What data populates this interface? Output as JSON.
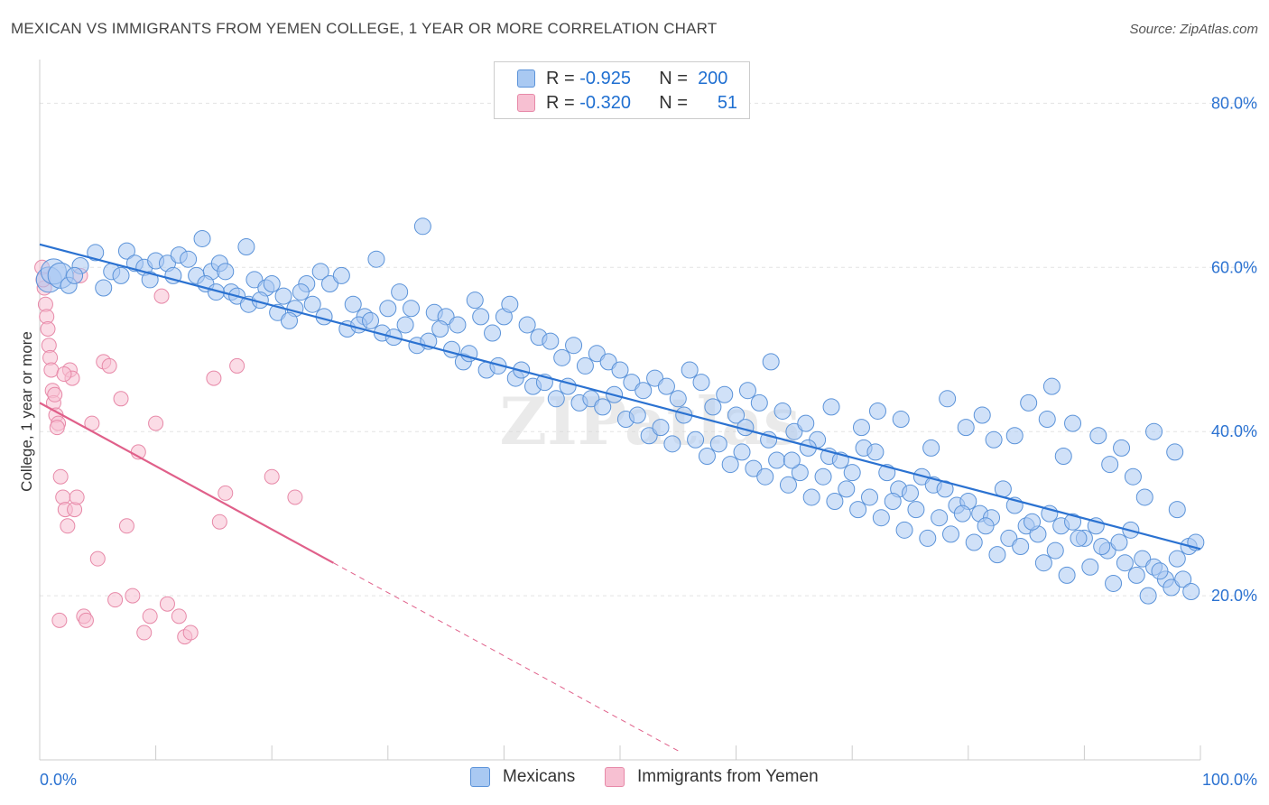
{
  "title": "MEXICAN VS IMMIGRANTS FROM YEMEN COLLEGE, 1 YEAR OR MORE CORRELATION CHART",
  "source": "Source: ZipAtlas.com",
  "legend": {
    "rows": [
      {
        "r_label": "R =",
        "r_value": "-0.925",
        "n_label": "N =",
        "n_value": "200"
      },
      {
        "r_label": "R =",
        "r_value": "-0.320",
        "n_label": "N =",
        "n_value": "51"
      }
    ]
  },
  "colors": {
    "mexicans_fill": "#a9c9f2",
    "mexicans_stroke": "#5b93d9",
    "mexicans_line": "#2b72d1",
    "yemen_fill": "#f7c0d2",
    "yemen_stroke": "#e789a8",
    "yemen_line": "#e0608a",
    "tick_label": "#2b72d1",
    "grid": "#e3e3e3"
  },
  "chart_data": {
    "type": "scatter",
    "title": "MEXICAN VS IMMIGRANTS FROM YEMEN COLLEGE, 1 YEAR OR MORE CORRELATION CHART",
    "xlabel": "",
    "ylabel": "College, 1 year or more",
    "xlim": [
      0,
      100
    ],
    "ylim": [
      0,
      84
    ],
    "x_tick_labels": [
      "0.0%",
      "100.0%"
    ],
    "y_ticks": [
      20,
      40,
      60,
      80
    ],
    "y_tick_labels": [
      "20.0%",
      "40.0%",
      "60.0%",
      "80.0%"
    ],
    "grid": true,
    "legend_position": "top-center",
    "watermark": "ZIPatlas",
    "series": [
      {
        "name": "Mexicans",
        "trend": {
          "x0": 0,
          "y0": 62.8,
          "x1": 100,
          "y1": 25.7
        },
        "points": [
          [
            0.8,
            58.5
          ],
          [
            1.2,
            59.5
          ],
          [
            1.8,
            59.0
          ],
          [
            2.5,
            57.8
          ],
          [
            3.5,
            60.2
          ],
          [
            4.8,
            61.8
          ],
          [
            6.2,
            59.5
          ],
          [
            7.5,
            62.0
          ],
          [
            8.2,
            60.5
          ],
          [
            9.0,
            60.0
          ],
          [
            10.0,
            60.8
          ],
          [
            11.0,
            60.5
          ],
          [
            12.0,
            61.5
          ],
          [
            12.8,
            61.0
          ],
          [
            13.5,
            59.0
          ],
          [
            14.0,
            63.5
          ],
          [
            14.8,
            59.5
          ],
          [
            15.5,
            60.5
          ],
          [
            16.5,
            57.0
          ],
          [
            17.0,
            56.5
          ],
          [
            17.8,
            62.5
          ],
          [
            18.5,
            58.5
          ],
          [
            19.5,
            57.5
          ],
          [
            20.0,
            58.0
          ],
          [
            21.0,
            56.5
          ],
          [
            22.0,
            55.0
          ],
          [
            23.0,
            58.0
          ],
          [
            23.5,
            55.5
          ],
          [
            24.2,
            59.5
          ],
          [
            25.0,
            58.0
          ],
          [
            26.0,
            59.0
          ],
          [
            27.0,
            55.5
          ],
          [
            28.0,
            54.0
          ],
          [
            29.0,
            61.0
          ],
          [
            30.0,
            55.0
          ],
          [
            31.0,
            57.0
          ],
          [
            32.0,
            55.0
          ],
          [
            33.0,
            65.0
          ],
          [
            34.0,
            54.5
          ],
          [
            35.0,
            54.0
          ],
          [
            36.0,
            53.0
          ],
          [
            37.5,
            56.0
          ],
          [
            38.0,
            54.0
          ],
          [
            39.0,
            52.0
          ],
          [
            40.0,
            54.0
          ],
          [
            40.5,
            55.5
          ],
          [
            42.0,
            53.0
          ],
          [
            43.0,
            51.5
          ],
          [
            44.0,
            51.0
          ],
          [
            45.0,
            49.0
          ],
          [
            46.0,
            50.5
          ],
          [
            47.0,
            48.0
          ],
          [
            48.0,
            49.5
          ],
          [
            49.0,
            48.5
          ],
          [
            50.0,
            47.5
          ],
          [
            51.0,
            46.0
          ],
          [
            52.0,
            45.0
          ],
          [
            53.0,
            46.5
          ],
          [
            54.0,
            45.5
          ],
          [
            55.0,
            44.0
          ],
          [
            56.0,
            47.5
          ],
          [
            57.0,
            46.0
          ],
          [
            58.0,
            43.0
          ],
          [
            59.0,
            44.5
          ],
          [
            60.0,
            42.0
          ],
          [
            61.0,
            45.0
          ],
          [
            62.0,
            43.5
          ],
          [
            63.0,
            48.5
          ],
          [
            64.0,
            42.5
          ],
          [
            65.0,
            40.0
          ],
          [
            66.0,
            41.0
          ],
          [
            67.0,
            39.0
          ],
          [
            68.0,
            37.0
          ],
          [
            69.0,
            36.5
          ],
          [
            70.0,
            35.0
          ],
          [
            71.0,
            38.0
          ],
          [
            72.0,
            37.5
          ],
          [
            73.0,
            35.0
          ],
          [
            74.0,
            33.0
          ],
          [
            75.0,
            32.5
          ],
          [
            76.0,
            34.5
          ],
          [
            77.0,
            33.5
          ],
          [
            78.0,
            33.0
          ],
          [
            79.0,
            31.0
          ],
          [
            80.0,
            31.5
          ],
          [
            81.0,
            30.0
          ],
          [
            82.0,
            29.5
          ],
          [
            83.0,
            33.0
          ],
          [
            84.0,
            31.0
          ],
          [
            85.0,
            28.5
          ],
          [
            86.0,
            27.5
          ],
          [
            87.0,
            30.0
          ],
          [
            88.0,
            28.5
          ],
          [
            89.0,
            29.0
          ],
          [
            90.0,
            27.0
          ],
          [
            91.0,
            28.5
          ],
          [
            92.0,
            25.5
          ],
          [
            93.0,
            26.5
          ],
          [
            94.0,
            28.0
          ],
          [
            95.0,
            24.5
          ],
          [
            96.0,
            23.5
          ],
          [
            97.0,
            22.0
          ],
          [
            98.0,
            24.5
          ],
          [
            99.0,
            26.0
          ],
          [
            99.6,
            26.5
          ],
          [
            3.0,
            59.0
          ],
          [
            5.5,
            57.5
          ],
          [
            7.0,
            59.0
          ],
          [
            9.5,
            58.5
          ],
          [
            11.5,
            59.0
          ],
          [
            14.3,
            58.0
          ],
          [
            15.2,
            57.0
          ],
          [
            16.0,
            59.5
          ],
          [
            18.0,
            55.5
          ],
          [
            19.0,
            56.0
          ],
          [
            20.5,
            54.5
          ],
          [
            21.5,
            53.5
          ],
          [
            22.5,
            57.0
          ],
          [
            24.5,
            54.0
          ],
          [
            26.5,
            52.5
          ],
          [
            27.5,
            53.0
          ],
          [
            28.5,
            53.5
          ],
          [
            29.5,
            52.0
          ],
          [
            30.5,
            51.5
          ],
          [
            31.5,
            53.0
          ],
          [
            32.5,
            50.5
          ],
          [
            33.5,
            51.0
          ],
          [
            34.5,
            52.5
          ],
          [
            35.5,
            50.0
          ],
          [
            36.5,
            48.5
          ],
          [
            37.0,
            49.5
          ],
          [
            38.5,
            47.5
          ],
          [
            39.5,
            48.0
          ],
          [
            41.0,
            46.5
          ],
          [
            41.5,
            47.5
          ],
          [
            42.5,
            45.5
          ],
          [
            43.5,
            46.0
          ],
          [
            44.5,
            44.0
          ],
          [
            45.5,
            45.5
          ],
          [
            46.5,
            43.5
          ],
          [
            47.5,
            44.0
          ],
          [
            48.5,
            43.0
          ],
          [
            49.5,
            44.5
          ],
          [
            50.5,
            41.5
          ],
          [
            51.5,
            42.0
          ],
          [
            52.5,
            39.5
          ],
          [
            53.5,
            40.5
          ],
          [
            54.5,
            38.5
          ],
          [
            55.5,
            42.0
          ],
          [
            56.5,
            39.0
          ],
          [
            57.5,
            37.0
          ],
          [
            58.5,
            38.5
          ],
          [
            59.5,
            36.0
          ],
          [
            60.5,
            37.5
          ],
          [
            61.5,
            35.5
          ],
          [
            62.5,
            34.5
          ],
          [
            63.5,
            36.5
          ],
          [
            64.5,
            33.5
          ],
          [
            65.5,
            35.0
          ],
          [
            66.5,
            32.0
          ],
          [
            67.5,
            34.5
          ],
          [
            68.5,
            31.5
          ],
          [
            69.5,
            33.0
          ],
          [
            70.5,
            30.5
          ],
          [
            71.5,
            32.0
          ],
          [
            72.5,
            29.5
          ],
          [
            73.5,
            31.5
          ],
          [
            74.5,
            28.0
          ],
          [
            75.5,
            30.5
          ],
          [
            76.5,
            27.0
          ],
          [
            77.5,
            29.5
          ],
          [
            78.5,
            27.5
          ],
          [
            79.5,
            30.0
          ],
          [
            80.5,
            26.5
          ],
          [
            81.5,
            28.5
          ],
          [
            82.5,
            25.0
          ],
          [
            83.5,
            27.0
          ],
          [
            84.5,
            26.0
          ],
          [
            85.5,
            29.0
          ],
          [
            86.5,
            24.0
          ],
          [
            87.5,
            25.5
          ],
          [
            88.5,
            22.5
          ],
          [
            89.5,
            27.0
          ],
          [
            90.5,
            23.5
          ],
          [
            91.5,
            26.0
          ],
          [
            92.5,
            21.5
          ],
          [
            93.5,
            24.0
          ],
          [
            94.5,
            22.5
          ],
          [
            95.5,
            20.0
          ],
          [
            96.5,
            23.0
          ],
          [
            97.5,
            21.0
          ],
          [
            98.5,
            22.0
          ],
          [
            99.2,
            20.5
          ],
          [
            70.8,
            40.5
          ],
          [
            74.2,
            41.5
          ],
          [
            76.8,
            38.0
          ],
          [
            79.8,
            40.5
          ],
          [
            82.2,
            39.0
          ],
          [
            85.2,
            43.5
          ],
          [
            86.8,
            41.5
          ],
          [
            88.2,
            37.0
          ],
          [
            91.2,
            39.5
          ],
          [
            93.2,
            38.0
          ],
          [
            96.0,
            40.0
          ],
          [
            97.8,
            37.5
          ],
          [
            68.2,
            43.0
          ],
          [
            72.2,
            42.5
          ],
          [
            78.2,
            44.0
          ],
          [
            81.2,
            42.0
          ],
          [
            84.0,
            39.5
          ],
          [
            87.2,
            45.5
          ],
          [
            89.0,
            41.0
          ],
          [
            92.2,
            36.0
          ],
          [
            94.2,
            34.5
          ],
          [
            95.2,
            32.0
          ],
          [
            98.0,
            30.5
          ],
          [
            62.8,
            39.0
          ],
          [
            64.8,
            36.5
          ],
          [
            66.2,
            38.0
          ],
          [
            60.8,
            40.5
          ]
        ]
      },
      {
        "name": "Immigrants from Yemen",
        "trend": {
          "x0": 0,
          "y0": 43.5,
          "x1": 25.3,
          "y1": 24.0,
          "dashed_to_x": 55.0
        },
        "points": [
          [
            0.2,
            60.0
          ],
          [
            0.4,
            57.5
          ],
          [
            0.5,
            55.5
          ],
          [
            0.6,
            54.0
          ],
          [
            0.7,
            52.5
          ],
          [
            0.8,
            50.5
          ],
          [
            0.9,
            49.0
          ],
          [
            1.0,
            47.5
          ],
          [
            1.1,
            45.0
          ],
          [
            1.2,
            43.5
          ],
          [
            1.3,
            44.5
          ],
          [
            1.4,
            42.0
          ],
          [
            1.6,
            41.0
          ],
          [
            1.8,
            34.5
          ],
          [
            2.0,
            32.0
          ],
          [
            2.2,
            30.5
          ],
          [
            2.4,
            28.5
          ],
          [
            2.6,
            47.5
          ],
          [
            2.8,
            46.5
          ],
          [
            3.0,
            30.5
          ],
          [
            3.2,
            32.0
          ],
          [
            3.5,
            59.0
          ],
          [
            3.8,
            17.5
          ],
          [
            4.0,
            17.0
          ],
          [
            4.5,
            41.0
          ],
          [
            5.0,
            24.5
          ],
          [
            5.5,
            48.5
          ],
          [
            6.0,
            48.0
          ],
          [
            6.5,
            19.5
          ],
          [
            7.0,
            44.0
          ],
          [
            7.5,
            28.5
          ],
          [
            8.0,
            20.0
          ],
          [
            8.5,
            37.5
          ],
          [
            9.0,
            15.5
          ],
          [
            9.5,
            17.5
          ],
          [
            10.0,
            41.0
          ],
          [
            10.5,
            56.5
          ],
          [
            11.0,
            19.0
          ],
          [
            12.0,
            17.5
          ],
          [
            12.5,
            15.0
          ],
          [
            13.0,
            15.5
          ],
          [
            15.0,
            46.5
          ],
          [
            15.5,
            29.0
          ],
          [
            16.0,
            32.5
          ],
          [
            17.0,
            48.0
          ],
          [
            20.0,
            34.5
          ],
          [
            22.0,
            32.0
          ],
          [
            1.5,
            40.5
          ],
          [
            2.1,
            47.0
          ],
          [
            0.3,
            58.5
          ],
          [
            1.7,
            17.0
          ]
        ]
      }
    ]
  }
}
